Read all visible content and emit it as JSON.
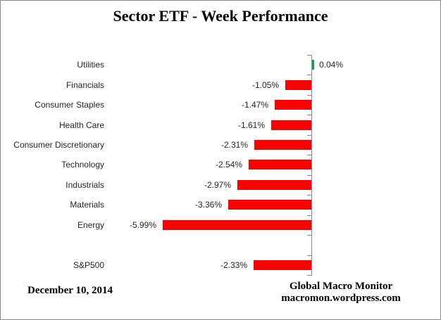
{
  "title": "Sector ETF - Week Performance",
  "footer": {
    "date": "December 10, 2014",
    "source_line1": "Global Macro Monitor",
    "source_line2": "macromon.wordpress.com"
  },
  "colors": {
    "bar_negative": "#FF0000",
    "bar_positive": "#00B050",
    "axis": "#8C8C8C",
    "label_text": "#262626",
    "title_text": "#000000",
    "frame_border": "#8A8A8A"
  },
  "chart_data": {
    "type": "bar",
    "orientation": "horizontal",
    "title": "Sector ETF - Week Performance",
    "xlabel": "",
    "ylabel": "",
    "value_unit": "percent",
    "xlim": [
      -6.5,
      1.0
    ],
    "grid": false,
    "legend": false,
    "zero_axis_line": true,
    "ticks_at_category_boundaries": true,
    "categories": [
      "Utilities",
      "Financials",
      "Consumer Staples",
      "Health Care",
      "Consumer Discretionary",
      "Technology",
      "Industrials",
      "Materials",
      "Energy",
      "S&P500"
    ],
    "values": [
      0.04,
      -1.05,
      -1.47,
      -1.61,
      -2.31,
      -2.54,
      -2.97,
      -3.36,
      -5.99,
      -2.33
    ],
    "display_labels": [
      "0.04%",
      "-1.05%",
      "-1.47%",
      "-1.61%",
      "-2.31%",
      "-2.54%",
      "-2.97%",
      "-3.36%",
      "-5.99%",
      "-2.33%"
    ],
    "slots": [
      0,
      1,
      2,
      3,
      4,
      5,
      6,
      7,
      8,
      10
    ],
    "total_slots": 11,
    "blank_slot_after": "Energy"
  }
}
